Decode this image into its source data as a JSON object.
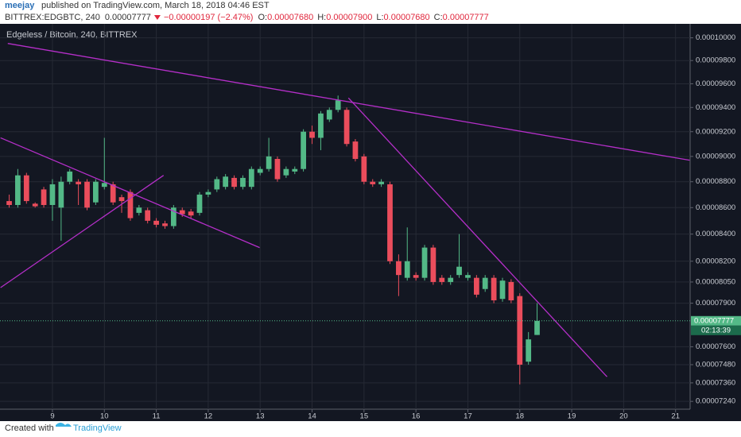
{
  "header": {
    "author": "meejay",
    "published": "published on TradingView.com, March 18, 2018 04:46 EST",
    "symbol": "BITTREX:EDGBTC, 240",
    "price": "0.00007777",
    "change": "−0.00000197 (−2.47%)",
    "ohlc": [
      {
        "label": "O:",
        "value": "0.00007680"
      },
      {
        "label": "H:",
        "value": "0.00007900"
      },
      {
        "label": "L:",
        "value": "0.00007680"
      },
      {
        "label": "C:",
        "value": "0.00007777"
      }
    ]
  },
  "footer": {
    "created": "Created with",
    "brand": "TradingView"
  },
  "chart_data": {
    "type": "candlestick",
    "title": "Edgeless / Bitcoin, 240, BITTREX",
    "log_scale": true,
    "grid": true,
    "up_color": "#53b987",
    "down_color": "#eb4d5c",
    "x": [
      8.167,
      8.333,
      8.5,
      8.667,
      8.833,
      9,
      9.167,
      9.333,
      9.5,
      9.667,
      9.833,
      10,
      10.167,
      10.333,
      10.5,
      10.667,
      10.833,
      11,
      11.167,
      11.333,
      11.5,
      11.667,
      11.833,
      12,
      12.167,
      12.333,
      12.5,
      12.667,
      12.833,
      13,
      13.167,
      13.333,
      13.5,
      13.667,
      13.833,
      14,
      14.167,
      14.333,
      14.5,
      14.667,
      14.833,
      15,
      15.167,
      15.333,
      15.5,
      15.667,
      15.833,
      16,
      16.167,
      16.333,
      16.5,
      16.667,
      16.833,
      17,
      17.167,
      17.333,
      17.5,
      17.667,
      17.833,
      18,
      18.167,
      18.333
    ],
    "open": [
      8.65e-05,
      8.62e-05,
      8.85e-05,
      8.63e-05,
      8.74e-05,
      8.62e-05,
      8.6e-05,
      8.8e-05,
      8.8e-05,
      8.8e-05,
      8.64e-05,
      8.76e-05,
      8.78e-05,
      8.68e-05,
      8.72e-05,
      8.56e-05,
      8.58e-05,
      8.5e-05,
      8.48e-05,
      8.46e-05,
      8.58e-05,
      8.57e-05,
      8.56e-05,
      8.7e-05,
      8.74e-05,
      8.76e-05,
      8.83e-05,
      8.76e-05,
      8.76e-05,
      8.87e-05,
      8.9e-05,
      8.98e-05,
      8.85e-05,
      8.88e-05,
      8.9e-05,
      9.2e-05,
      9.15e-05,
      9.3e-05,
      9.38e-05,
      9.38e-05,
      9.12e-05,
      9e-05,
      8.8e-05,
      8.78e-05,
      8.78e-05,
      8.2e-05,
      8.08e-05,
      8.1e-05,
      8.08e-05,
      8.3e-05,
      8.08e-05,
      8.05e-05,
      8.1e-05,
      8.08e-05,
      8.08e-05,
      8e-05,
      8.08e-05,
      7.93e-05,
      8.05e-05,
      7.95e-05,
      7.5e-05,
      7.68e-05
    ],
    "high": [
      8.7e-05,
      8.9e-05,
      8.87e-05,
      8.64e-05,
      8.76e-05,
      8.82e-05,
      8.84e-05,
      8.9e-05,
      8.82e-05,
      8.82e-05,
      8.82e-05,
      9.15e-05,
      8.8e-05,
      8.7e-05,
      8.74e-05,
      8.62e-05,
      8.6e-05,
      8.52e-05,
      8.5e-05,
      8.62e-05,
      8.6e-05,
      8.59e-05,
      8.72e-05,
      8.74e-05,
      8.84e-05,
      8.86e-05,
      8.85e-05,
      8.85e-05,
      8.92e-05,
      8.92e-05,
      9.15e-05,
      9e-05,
      8.92e-05,
      8.92e-05,
      9.22e-05,
      9.25e-05,
      9.37e-05,
      9.4e-05,
      9.5e-05,
      9.4e-05,
      9.14e-05,
      9.02e-05,
      8.82e-05,
      8.82e-05,
      8.8e-05,
      8.25e-05,
      8.45e-05,
      8.12e-05,
      8.32e-05,
      8.32e-05,
      8.1e-05,
      8.1e-05,
      8.4e-05,
      8.12e-05,
      8.1e-05,
      8.1e-05,
      8.1e-05,
      8.08e-05,
      8.07e-05,
      7.97e-05,
      7.7e-05,
      7.9e-05
    ],
    "low": [
      8.6e-05,
      8.6e-05,
      8.63e-05,
      8.6e-05,
      8.6e-05,
      8.5e-05,
      8.35e-05,
      8.78e-05,
      8.62e-05,
      8.58e-05,
      8.62e-05,
      8.74e-05,
      8.62e-05,
      8.56e-05,
      8.5e-05,
      8.54e-05,
      8.48e-05,
      8.45e-05,
      8.44e-05,
      8.44e-05,
      8.53e-05,
      8.52e-05,
      8.54e-05,
      8.68e-05,
      8.72e-05,
      8.74e-05,
      8.74e-05,
      8.74e-05,
      8.74e-05,
      8.85e-05,
      8.88e-05,
      8.8e-05,
      8.83e-05,
      8.86e-05,
      8.88e-05,
      9.1e-05,
      9.05e-05,
      9.28e-05,
      9.36e-05,
      9.08e-05,
      8.96e-05,
      8.78e-05,
      8.76e-05,
      8.76e-05,
      8.18e-05,
      7.95e-05,
      8.06e-05,
      8.06e-05,
      8.06e-05,
      8.03e-05,
      8.03e-05,
      8.03e-05,
      8.08e-05,
      8.06e-05,
      7.94e-05,
      7.98e-05,
      7.9e-05,
      7.91e-05,
      7.9e-05,
      7.35e-05,
      7.48e-05,
      7.68e-05
    ],
    "close": [
      8.62e-05,
      8.85e-05,
      8.65e-05,
      8.61e-05,
      8.62e-05,
      8.78e-05,
      8.8e-05,
      8.88e-05,
      8.78e-05,
      8.6e-05,
      8.8e-05,
      8.79e-05,
      8.64e-05,
      8.65e-05,
      8.52e-05,
      8.6e-05,
      8.5e-05,
      8.47e-05,
      8.46e-05,
      8.6e-05,
      8.55e-05,
      8.54e-05,
      8.7e-05,
      8.72e-05,
      8.82e-05,
      8.84e-05,
      8.76e-05,
      8.83e-05,
      8.9e-05,
      8.9e-05,
      9e-05,
      8.82e-05,
      8.9e-05,
      8.9e-05,
      9.2e-05,
      9.15e-05,
      9.35e-05,
      9.38e-05,
      9.46e-05,
      9.1e-05,
      8.98e-05,
      8.8e-05,
      8.78e-05,
      8.8e-05,
      8.2e-05,
      8.1e-05,
      8.2e-05,
      8.08e-05,
      8.3e-05,
      8.05e-05,
      8.05e-05,
      8.08e-05,
      8.16e-05,
      8.1e-05,
      7.96e-05,
      8.08e-05,
      7.92e-05,
      8.06e-05,
      7.92e-05,
      7.48e-05,
      7.65e-05,
      7.777e-05
    ],
    "xlim": [
      7.99,
      21.28
    ],
    "xticks": [
      9,
      10,
      11,
      12,
      13,
      14,
      15,
      16,
      17,
      18,
      19,
      20,
      21
    ],
    "ylim": [
      7.19e-05,
      0.00010125
    ],
    "yticks": [
      {
        "value": 0.0001,
        "label": "0.00010000"
      },
      {
        "value": 9.8e-05,
        "label": "0.00009800"
      },
      {
        "value": 9.6e-05,
        "label": "0.00009600"
      },
      {
        "value": 9.4e-05,
        "label": "0.00009400"
      },
      {
        "value": 9.2e-05,
        "label": "0.00009200"
      },
      {
        "value": 9e-05,
        "label": "0.00009000"
      },
      {
        "value": 8.8e-05,
        "label": "0.00008800"
      },
      {
        "value": 8.6e-05,
        "label": "0.00008600"
      },
      {
        "value": 8.4e-05,
        "label": "0.00008400"
      },
      {
        "value": 8.2e-05,
        "label": "0.00008200"
      },
      {
        "value": 8.05e-05,
        "label": "0.00008050"
      },
      {
        "value": 7.9e-05,
        "label": "0.00007900"
      },
      {
        "value": 7.6e-05,
        "label": "0.00007600"
      },
      {
        "value": 7.48e-05,
        "label": "0.00007480"
      },
      {
        "value": 7.36e-05,
        "label": "0.00007360"
      },
      {
        "value": 7.24e-05,
        "label": "0.00007240"
      }
    ],
    "last_price": {
      "value": 7.777e-05,
      "label": "0.00007777"
    },
    "countdown": "02:13:39",
    "trendline_color": "#b52fc9",
    "trendlines": [
      {
        "x": [
          8.14,
          21.27
        ],
        "y": [
          9.95e-05,
          8.97e-05
        ]
      },
      {
        "x": [
          8.0,
          12.99
        ],
        "y": [
          9.15e-05,
          8.3e-05
        ]
      },
      {
        "x": [
          8.0,
          11.14
        ],
        "y": [
          8.01e-05,
          8.85e-05
        ]
      },
      {
        "x": [
          14.7,
          19.68
        ],
        "y": [
          9.48e-05,
          7.4e-05
        ]
      }
    ]
  }
}
